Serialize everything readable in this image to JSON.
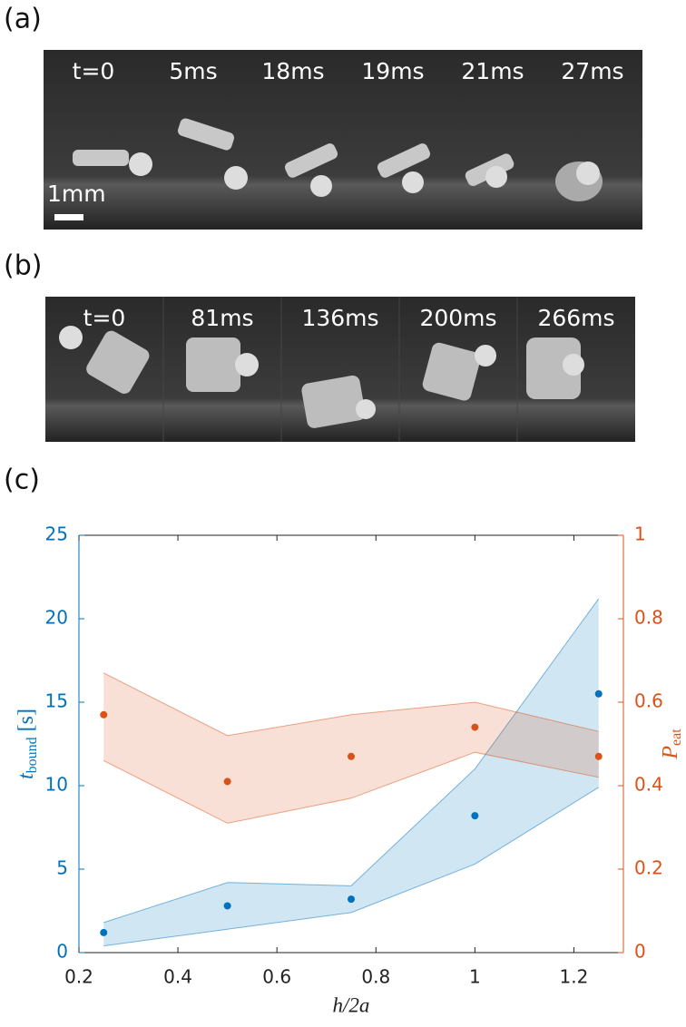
{
  "panel_a": {
    "label": "(a)",
    "frames": [
      "t=0",
      "5ms",
      "18ms",
      "19ms",
      "21ms",
      "27ms"
    ],
    "scale_bar": "1mm"
  },
  "panel_b": {
    "label": "(b)",
    "frames": [
      "t=0",
      "81ms",
      "136ms",
      "200ms",
      "266ms"
    ]
  },
  "chart_data": {
    "type": "band-scatter",
    "panel_label": "(c)",
    "x": [
      0.25,
      0.5,
      0.75,
      1,
      1.25
    ],
    "xlim": [
      0.2,
      1.3
    ],
    "xticks": [
      0.2,
      0.4,
      0.6,
      0.8,
      1,
      1.2
    ],
    "xlabel": "h/2a",
    "ylim": [
      0,
      25
    ],
    "yticks": [
      0,
      5,
      10,
      15,
      20,
      25
    ],
    "ylabel": {
      "symbol": "t",
      "sub": "bound",
      "unit": "[s]"
    },
    "y2lim": [
      0,
      1
    ],
    "y2ticks": [
      0,
      0.2,
      0.4,
      0.6,
      0.8,
      1
    ],
    "y2label": {
      "symbol": "P",
      "sub": "eat"
    },
    "series": [
      {
        "color": "#0072bd",
        "values": [
          1.2,
          2.8,
          3.2,
          8.2,
          15.5
        ],
        "upper": [
          1.8,
          4.2,
          4.0,
          11.0,
          21.2
        ],
        "lower": [
          0.4,
          1.4,
          2.4,
          5.3,
          9.9
        ]
      },
      {
        "color": "#d95319",
        "axis": "y2",
        "values": [
          0.57,
          0.41,
          0.47,
          0.54,
          0.47
        ],
        "upper": [
          0.67,
          0.52,
          0.57,
          0.6,
          0.53
        ],
        "lower": [
          0.46,
          0.31,
          0.37,
          0.48,
          0.42
        ]
      }
    ]
  }
}
